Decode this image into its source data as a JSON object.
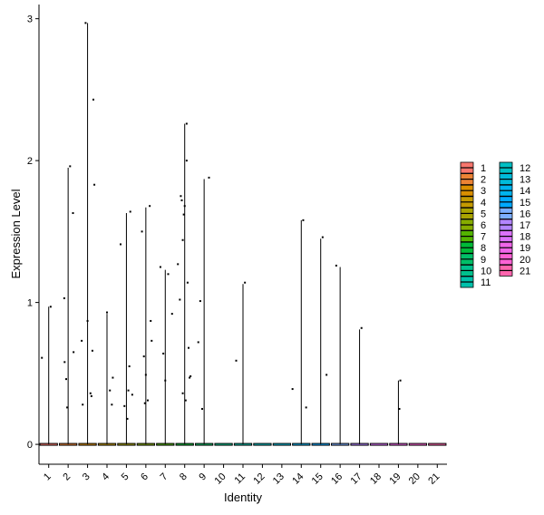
{
  "chart_data": {
    "type": "violin",
    "xlabel": "Identity",
    "ylabel": "Expression Level",
    "categories": [
      "1",
      "2",
      "3",
      "4",
      "5",
      "6",
      "7",
      "8",
      "9",
      "10",
      "11",
      "12",
      "13",
      "14",
      "15",
      "16",
      "17",
      "18",
      "19",
      "20",
      "21"
    ],
    "ylim": [
      -0.14,
      3.1
    ],
    "yticks": [
      0,
      1,
      2,
      3
    ],
    "grid": false,
    "legend_position": "right",
    "legend_columns": 2,
    "colors": [
      "#F8766D",
      "#EB8335",
      "#DA8F00",
      "#C49A00",
      "#A9A400",
      "#86AC00",
      "#53B400",
      "#00BA38",
      "#00BE67",
      "#00C08D",
      "#00C1AB",
      "#00BFC4",
      "#00BBDA",
      "#00B4EF",
      "#00A9FF",
      "#7CAEFF",
      "#B385FF",
      "#DB72FB",
      "#F066EA",
      "#FC61D5",
      "#FF65AE"
    ],
    "series": [
      {
        "name": "1",
        "max": 0.97,
        "points": [
          [
            -0.35,
            0.61
          ],
          [
            0.1,
            0.97
          ]
        ]
      },
      {
        "name": "2",
        "max": 1.95,
        "points": [
          [
            -0.2,
            1.03
          ],
          [
            -0.18,
            0.58
          ],
          [
            -0.1,
            0.46
          ],
          [
            -0.05,
            0.26
          ],
          [
            0.1,
            1.96
          ],
          [
            0.25,
            1.63
          ],
          [
            0.28,
            0.65
          ]
        ]
      },
      {
        "name": "3",
        "max": 2.97,
        "points": [
          [
            -0.3,
            0.73
          ],
          [
            -0.25,
            0.28
          ],
          [
            -0.1,
            2.97
          ],
          [
            0.0,
            0.87
          ],
          [
            0.15,
            0.36
          ],
          [
            0.2,
            0.34
          ],
          [
            0.25,
            0.66
          ],
          [
            0.3,
            2.43
          ],
          [
            0.35,
            1.83
          ]
        ]
      },
      {
        "name": "4",
        "max": 0.92,
        "points": [
          [
            0.0,
            0.93
          ],
          [
            0.15,
            0.38
          ],
          [
            0.25,
            0.28
          ],
          [
            0.3,
            0.47
          ]
        ]
      },
      {
        "name": "5",
        "max": 1.63,
        "points": [
          [
            -0.3,
            1.41
          ],
          [
            -0.1,
            0.27
          ],
          [
            0.05,
            0.18
          ],
          [
            0.1,
            0.38
          ],
          [
            0.15,
            0.55
          ],
          [
            0.2,
            1.64
          ],
          [
            0.3,
            0.35
          ]
        ]
      },
      {
        "name": "6",
        "max": 1.67,
        "points": [
          [
            -0.2,
            1.5
          ],
          [
            -0.1,
            0.62
          ],
          [
            -0.05,
            0.29
          ],
          [
            0.0,
            0.49
          ],
          [
            0.1,
            0.31
          ],
          [
            0.2,
            1.68
          ],
          [
            0.25,
            0.87
          ],
          [
            0.3,
            0.73
          ]
        ]
      },
      {
        "name": "7",
        "max": 1.23,
        "points": [
          [
            -0.25,
            1.25
          ],
          [
            -0.1,
            0.64
          ],
          [
            0.0,
            0.45
          ],
          [
            0.15,
            1.2
          ],
          [
            0.35,
            0.92
          ]
        ]
      },
      {
        "name": "8",
        "max": 2.26,
        "points": [
          [
            -0.35,
            1.27
          ],
          [
            -0.25,
            1.02
          ],
          [
            -0.2,
            1.75
          ],
          [
            -0.15,
            1.72
          ],
          [
            -0.1,
            1.44
          ],
          [
            -0.1,
            0.36
          ],
          [
            -0.05,
            1.62
          ],
          [
            0.0,
            1.68
          ],
          [
            0.05,
            0.31
          ],
          [
            0.1,
            2.26
          ],
          [
            0.1,
            2.0
          ],
          [
            0.15,
            1.14
          ],
          [
            0.2,
            0.68
          ],
          [
            0.25,
            0.47
          ],
          [
            0.3,
            0.48
          ]
        ]
      },
      {
        "name": "9",
        "max": 1.87,
        "points": [
          [
            -0.3,
            0.72
          ],
          [
            -0.2,
            1.01
          ],
          [
            -0.1,
            0.25
          ],
          [
            0.25,
            1.88
          ]
        ]
      },
      {
        "name": "10",
        "max": 0.0,
        "points": []
      },
      {
        "name": "11",
        "max": 1.13,
        "points": [
          [
            -0.35,
            0.59
          ],
          [
            0.1,
            1.14
          ]
        ]
      },
      {
        "name": "12",
        "max": 0.0,
        "points": []
      },
      {
        "name": "13",
        "max": 0.0,
        "points": []
      },
      {
        "name": "14",
        "max": 1.58,
        "points": [
          [
            -0.45,
            0.39
          ],
          [
            0.1,
            1.58
          ],
          [
            0.25,
            0.26
          ]
        ]
      },
      {
        "name": "15",
        "max": 1.45,
        "points": [
          [
            0.1,
            1.46
          ],
          [
            0.3,
            0.49
          ]
        ]
      },
      {
        "name": "16",
        "max": 1.25,
        "points": [
          [
            -0.2,
            1.26
          ]
        ]
      },
      {
        "name": "17",
        "max": 0.81,
        "points": [
          [
            0.1,
            0.82
          ]
        ]
      },
      {
        "name": "18",
        "max": 0.0,
        "points": []
      },
      {
        "name": "19",
        "max": 0.45,
        "points": [
          [
            0.1,
            0.45
          ],
          [
            0.05,
            0.25
          ]
        ]
      },
      {
        "name": "20",
        "max": 0.0,
        "points": []
      },
      {
        "name": "21",
        "max": 0.0,
        "points": []
      }
    ]
  }
}
